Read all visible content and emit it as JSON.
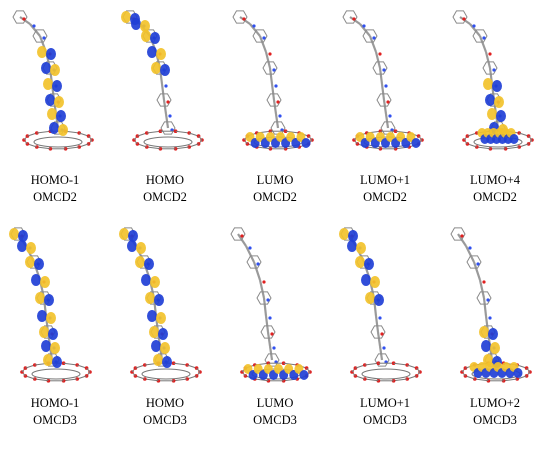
{
  "colors": {
    "orbital_pos": "#f2c22b",
    "orbital_neg": "#1f3fd6",
    "bond": "#9a9a9a",
    "oxygen": "#e02020",
    "nitrogen": "#3050f0"
  },
  "rows": [
    {
      "panels": [
        {
          "orbital": "HOMO-1",
          "system": "OMCD2",
          "highlight": "lower-chain"
        },
        {
          "orbital": "HOMO",
          "system": "OMCD2",
          "highlight": "upper-chain"
        },
        {
          "orbital": "LUMO",
          "system": "OMCD2",
          "highlight": "cluster"
        },
        {
          "orbital": "LUMO+1",
          "system": "OMCD2",
          "highlight": "cluster"
        },
        {
          "orbital": "LUMO+4",
          "system": "OMCD2",
          "highlight": "mid-cluster"
        }
      ]
    },
    {
      "panels": [
        {
          "orbital": "HOMO-1",
          "system": "OMCD3",
          "highlight": "full-chain"
        },
        {
          "orbital": "HOMO",
          "system": "OMCD3",
          "highlight": "full-chain"
        },
        {
          "orbital": "LUMO",
          "system": "OMCD3",
          "highlight": "cluster"
        },
        {
          "orbital": "LUMO+1",
          "system": "OMCD3",
          "highlight": "upper-chain"
        },
        {
          "orbital": "LUMO+2",
          "system": "OMCD3",
          "highlight": "lower-cluster"
        }
      ]
    }
  ]
}
